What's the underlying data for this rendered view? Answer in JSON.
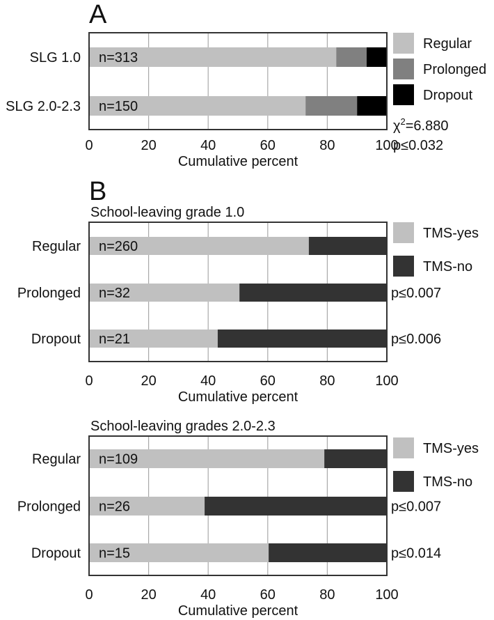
{
  "chart_data": [
    {
      "type": "bar",
      "stacked": true,
      "orientation": "horizontal",
      "panel_label": "A",
      "title": "",
      "categories": [
        "SLG 1.0",
        "SLG 2.0-2.3"
      ],
      "bar_labels": [
        "n=313",
        "n=150"
      ],
      "series": [
        {
          "name": "Regular",
          "color": "#c0c0c0",
          "values": [
            83.0,
            72.7
          ]
        },
        {
          "name": "Prolonged",
          "color": "#808080",
          "values": [
            10.2,
            17.3
          ]
        },
        {
          "name": "Dropout",
          "color": "#000000",
          "values": [
            6.8,
            10.0
          ]
        }
      ],
      "xlabel": "Cumulative percent",
      "ylabel": "",
      "xlim": [
        0,
        100
      ],
      "xticks": [
        "0",
        "20",
        "40",
        "60",
        "80",
        "100"
      ],
      "grid": true,
      "legend_position": "right",
      "annotations": [
        "χ²=6.880",
        "p≤0.032"
      ],
      "stat": {
        "chi_symbol": "χ",
        "chi_sup": "2",
        "chi_value": "=6.880",
        "p": "p≤0.032"
      }
    },
    {
      "type": "bar",
      "stacked": true,
      "orientation": "horizontal",
      "panel_label": "B",
      "title": "School-leaving grade 1.0",
      "categories": [
        "Regular",
        "Prolonged",
        "Dropout"
      ],
      "bar_labels": [
        "n=260",
        "n=32",
        "n=21"
      ],
      "series": [
        {
          "name": "TMS-yes",
          "color": "#c0c0c0",
          "values": [
            73.8,
            50.5,
            43.2
          ]
        },
        {
          "name": "TMS-no",
          "color": "#333333",
          "values": [
            26.2,
            49.5,
            56.8
          ]
        }
      ],
      "xlabel": "Cumulative percent",
      "ylabel": "",
      "xlim": [
        0,
        100
      ],
      "xticks": [
        "0",
        "20",
        "40",
        "60",
        "80",
        "100"
      ],
      "grid": true,
      "legend_position": "right",
      "row_pvalues": [
        "",
        "p≤0.007",
        "p≤0.006"
      ]
    },
    {
      "type": "bar",
      "stacked": true,
      "orientation": "horizontal",
      "panel_label": "",
      "title": "School-leaving grades 2.0-2.3",
      "categories": [
        "Regular",
        "Prolonged",
        "Dropout"
      ],
      "bar_labels": [
        "n=109",
        "n=26",
        "n=15"
      ],
      "series": [
        {
          "name": "TMS-yes",
          "color": "#c0c0c0",
          "values": [
            79.0,
            38.8,
            60.3
          ]
        },
        {
          "name": "TMS-no",
          "color": "#333333",
          "values": [
            21.0,
            61.2,
            39.7
          ]
        }
      ],
      "xlabel": "Cumulative percent",
      "ylabel": "",
      "xlim": [
        0,
        100
      ],
      "xticks": [
        "0",
        "20",
        "40",
        "60",
        "80",
        "100"
      ],
      "grid": true,
      "legend_position": "right",
      "row_pvalues": [
        "",
        "p≤0.007",
        "p≤0.014"
      ]
    }
  ]
}
